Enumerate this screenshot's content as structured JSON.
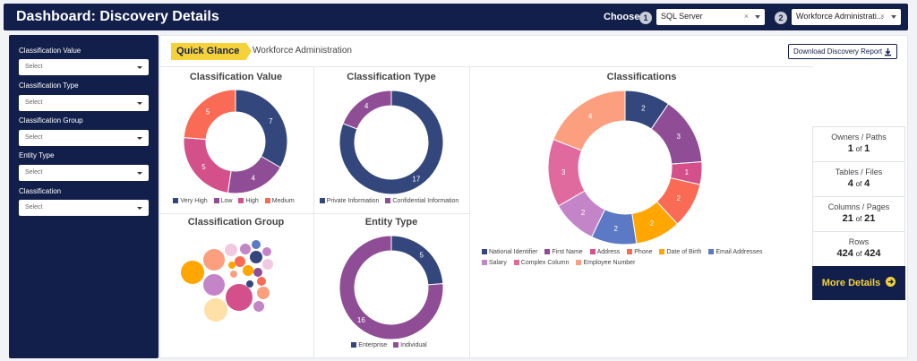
{
  "header": {
    "title": "Dashboard: Discovery Details",
    "choose_label": "Choose",
    "step1": "1",
    "step2": "2",
    "select1": {
      "value": "SQL Server",
      "clear": "×"
    },
    "select2": {
      "value": "Workforce Administrati...",
      "clear": "×"
    }
  },
  "sidebar": {
    "filters": [
      {
        "label": "Classification Value",
        "placeholder": "Select"
      },
      {
        "label": "Classification Type",
        "placeholder": "Select"
      },
      {
        "label": "Classification Group",
        "placeholder": "Select"
      },
      {
        "label": "Entity Type",
        "placeholder": "Select"
      },
      {
        "label": "Classification",
        "placeholder": "Select"
      }
    ]
  },
  "main": {
    "quick_glance": "Quick Glance",
    "subtitle": "Workforce Administration",
    "download_label": "Download Discovery Report"
  },
  "charts": {
    "classification_value": {
      "title": "Classification Value",
      "slices": [
        {
          "label": "Very High",
          "value": 7,
          "color": "#33477c"
        },
        {
          "label": "Low",
          "value": 4,
          "color": "#8f4d96"
        },
        {
          "label": "High",
          "value": 5,
          "color": "#d4508a"
        },
        {
          "label": "Medium",
          "value": 5,
          "color": "#f96b55"
        }
      ]
    },
    "classification_type": {
      "title": "Classification Type",
      "slices": [
        {
          "label": "Private Information",
          "value": 17,
          "color": "#33477c"
        },
        {
          "label": "Confidential Information",
          "value": 4,
          "color": "#8f4d96"
        }
      ]
    },
    "classification_group": {
      "title": "Classification Group"
    },
    "entity_type": {
      "title": "Entity Type",
      "slices": [
        {
          "label": "Enterprise",
          "value": 5,
          "color": "#33477c"
        },
        {
          "label": "Individual",
          "value": 16,
          "color": "#8f4d96"
        }
      ]
    },
    "classifications": {
      "title": "Classifications",
      "slices": [
        {
          "label": "National Identifier",
          "value": 2,
          "color": "#33477c"
        },
        {
          "label": "First Name",
          "value": 3,
          "color": "#8f4d96"
        },
        {
          "label": "Address",
          "value": 1,
          "color": "#d4508a"
        },
        {
          "label": "Phone",
          "value": 2,
          "color": "#f96b55"
        },
        {
          "label": "Date of Birth",
          "value": 2,
          "color": "#ffa600"
        },
        {
          "label": "Email Addresses",
          "value": 2,
          "color": "#5b79c4"
        },
        {
          "label": "Salary",
          "value": 2,
          "color": "#c485c8"
        },
        {
          "label": "Complex Column",
          "value": 3,
          "color": "#e06a9e"
        },
        {
          "label": "Employee Number",
          "value": 4,
          "color": "#fc9f7f"
        }
      ]
    }
  },
  "stats": [
    {
      "label": "Owners / Paths",
      "value": "1",
      "of": "of",
      "total": "1"
    },
    {
      "label": "Tables / Files",
      "value": "4",
      "of": "of",
      "total": "4"
    },
    {
      "label": "Columns / Pages",
      "value": "21",
      "of": "of",
      "total": "21"
    },
    {
      "label": "Rows",
      "value": "424",
      "of": "of",
      "total": "424"
    }
  ],
  "more_details": "More Details"
}
